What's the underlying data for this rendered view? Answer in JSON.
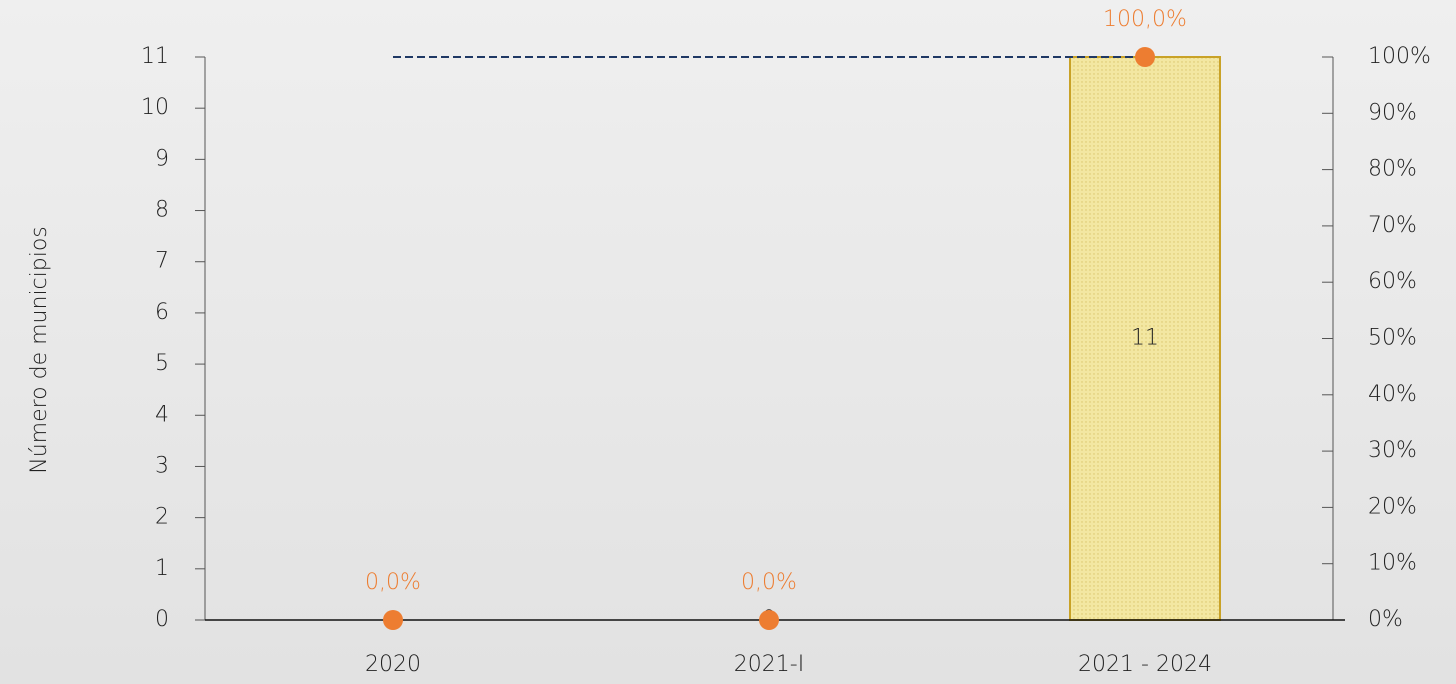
{
  "chart_data": {
    "type": "combo",
    "y_label": "Número de municipios",
    "categories": [
      "2020",
      "2021-I",
      "2021 - 2024"
    ],
    "series": [
      {
        "type": "bar",
        "color": "#f3e7a2",
        "edge_color": "#c9a227",
        "values": [
          null,
          0,
          11
        ]
      },
      {
        "type": "line",
        "color": "#1f3864",
        "linestyle": "dashed",
        "marker": false,
        "values": [
          11,
          11,
          11
        ]
      },
      {
        "type": "line",
        "axis": "y2",
        "color": "#ed7d31",
        "linestyle": "none",
        "marker": true,
        "values": [
          0,
          0,
          100
        ],
        "value_labels": [
          "0,0%",
          "0,0%",
          "100,0%"
        ]
      }
    ],
    "ylim": [
      0,
      11
    ],
    "yticks": [
      0,
      1,
      2,
      3,
      4,
      5,
      6,
      7,
      8,
      9,
      10,
      11
    ],
    "y2lim": [
      0,
      100
    ],
    "y2ticks": [
      {
        "value": 0,
        "label": "0%"
      },
      {
        "value": 10,
        "label": "10%"
      },
      {
        "value": 20,
        "label": "20%"
      },
      {
        "value": 30,
        "label": "30%"
      },
      {
        "value": 40,
        "label": "40%"
      },
      {
        "value": 50,
        "label": "50%"
      },
      {
        "value": 60,
        "label": "60%"
      },
      {
        "value": 70,
        "label": "70%"
      },
      {
        "value": 80,
        "label": "80%"
      },
      {
        "value": 90,
        "label": "90%"
      },
      {
        "value": 100,
        "label": "100%"
      }
    ],
    "grid": false
  }
}
